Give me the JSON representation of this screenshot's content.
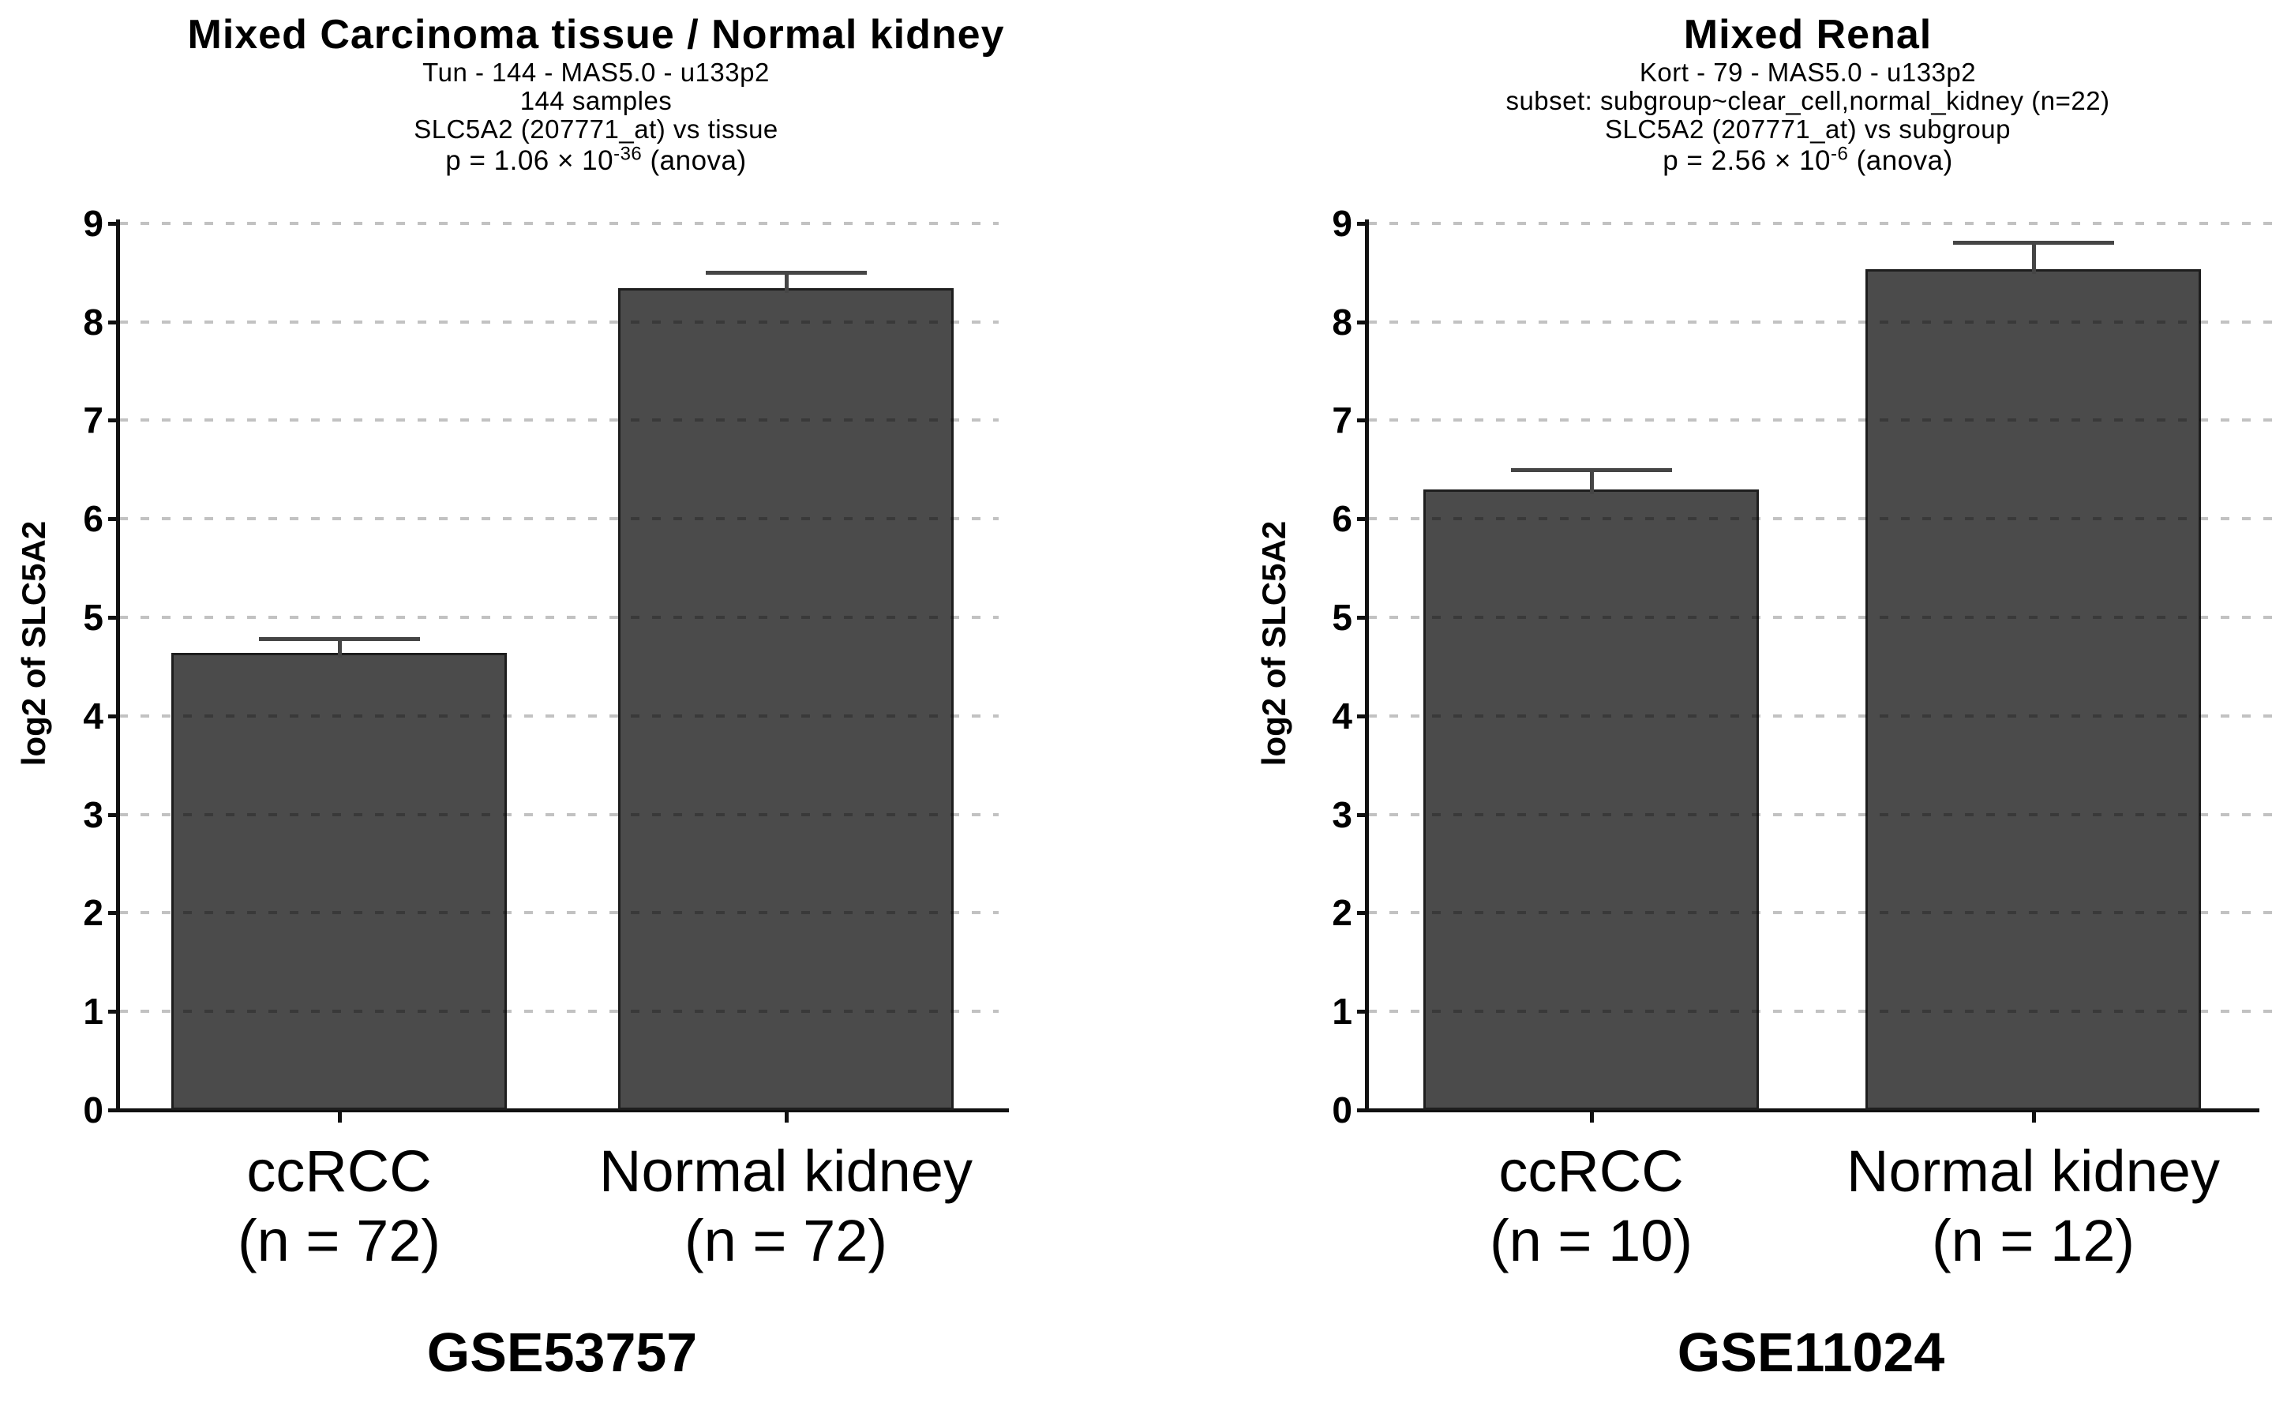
{
  "figure": {
    "background": "#ffffff",
    "text_color": "#000000"
  },
  "chart_data": [
    {
      "type": "bar",
      "title": "Mixed Carcinoma tissue / Normal kidney",
      "subtitle_lines": [
        "Tun - 144 - MAS5.0 - u133p2",
        "144 samples",
        "SLC5A2 (207771_at) vs tissue"
      ],
      "p_value": {
        "prefix": "p = 1.06 × 10",
        "exponent": "-36",
        "suffix": " (anova)"
      },
      "ylabel": "log2 of SLC5A2",
      "ylim": [
        0,
        9
      ],
      "yticks": [
        0,
        1,
        2,
        3,
        4,
        5,
        6,
        7,
        8,
        9
      ],
      "grid": "horizontal-dashed",
      "legend": "none",
      "categories": [
        "ccRCC",
        "Normal kidney"
      ],
      "category_sublabels": [
        "(n = 72)",
        "(n = 72)"
      ],
      "values": [
        4.64,
        8.34
      ],
      "error_upper": [
        4.78,
        8.5
      ],
      "dataset_label": "GSE53757",
      "bar_color": "#4b4b4b"
    },
    {
      "type": "bar",
      "title": "Mixed Renal",
      "subtitle_lines": [
        "Kort - 79 - MAS5.0 - u133p2",
        "subset: subgroup~clear_cell,normal_kidney (n=22)",
        "SLC5A2 (207771_at) vs subgroup"
      ],
      "p_value": {
        "prefix": "p = 2.56 × 10",
        "exponent": "-6",
        "suffix": " (anova)"
      },
      "ylabel": "log2 of SLC5A2",
      "ylim": [
        0,
        9
      ],
      "yticks": [
        0,
        1,
        2,
        3,
        4,
        5,
        6,
        7,
        8,
        9
      ],
      "grid": "horizontal-dashed",
      "legend": "none",
      "categories": [
        "ccRCC",
        "Normal kidney"
      ],
      "category_sublabels": [
        "(n = 10)",
        "(n = 12)"
      ],
      "values": [
        6.3,
        8.53
      ],
      "error_upper": [
        6.5,
        8.81
      ],
      "dataset_label": "GSE11024",
      "bar_color": "#4b4b4b"
    }
  ]
}
